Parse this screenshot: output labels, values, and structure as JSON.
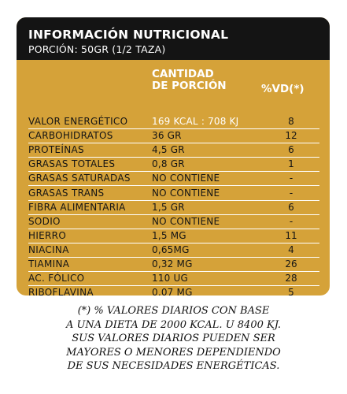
{
  "header": {
    "title": "INFORMACIÓN NUTRICIONAL",
    "portion": "PORCIÓN: 50GR (1/2 TAZA)"
  },
  "columns": {
    "qty_line1": "CANTIDAD",
    "qty_line2": "DE PORCIÓN",
    "vd": "%VD(*)"
  },
  "rows": [
    {
      "name": "VALOR ENERGÉTICO",
      "qty": "169 KCAL : 708 KJ",
      "vd": "8"
    },
    {
      "name": "CARBOHIDRATOS",
      "qty": "36 GR",
      "vd": "12"
    },
    {
      "name": "PROTEÍNAS",
      "qty": "4,5 GR",
      "vd": "6"
    },
    {
      "name": "GRASAS TOTALES",
      "qty": "0,8 GR",
      "vd": "1"
    },
    {
      "name": "GRASAS SATURADAS",
      "qty": "NO CONTIENE",
      "vd": "-"
    },
    {
      "name": "GRASAS TRANS",
      "qty": "NO CONTIENE",
      "vd": "-"
    },
    {
      "name": "FIBRA ALIMENTARIA",
      "qty": "1,5 GR",
      "vd": "6"
    },
    {
      "name": "SODIO",
      "qty": "NO CONTIENE",
      "vd": "-"
    },
    {
      "name": "HIERRO",
      "qty": "1,5 MG",
      "vd": "11"
    },
    {
      "name": "NIACINA",
      "qty": "0,65MG",
      "vd": "4"
    },
    {
      "name": "TIAMINA",
      "qty": "0,32 MG",
      "vd": "26"
    },
    {
      "name": "AC. FÓLICO",
      "qty": "110 UG",
      "vd": "28"
    },
    {
      "name": "RIBOFLAVINA",
      "qty": "0,07 MG",
      "vd": "5"
    }
  ],
  "footnote": [
    "(*) % VALORES DIARIOS CON BASE",
    "A UNA DIETA DE 2000 KCAL. U 8400 KJ.",
    "SUS VALORES DIARIOS PUEDEN SER",
    "MAYORES O MENORES DEPENDIENDO",
    "DE SUS NECESIDADES ENERGÉTICAS."
  ],
  "colors": {
    "panel": "#d5a239",
    "header": "#141414",
    "text_light": "#ffffff",
    "text_dark": "#141414"
  }
}
